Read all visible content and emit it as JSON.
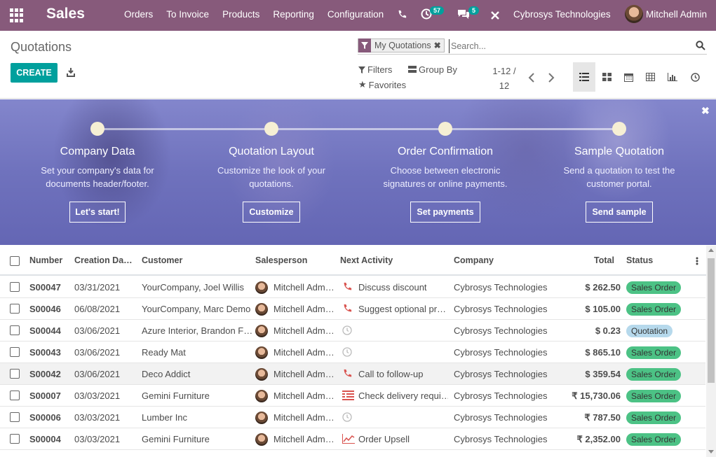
{
  "app": {
    "name": "Sales",
    "menu": [
      "Orders",
      "To Invoice",
      "Products",
      "Reporting",
      "Configuration"
    ],
    "activity_count": "57",
    "message_count": "5",
    "company": "Cybrosys Technologies",
    "user": "Mitchell Admin"
  },
  "control_panel": {
    "breadcrumb": "Quotations",
    "create_label": "CREATE",
    "facet_label": "My Quotations",
    "search_placeholder": "Search...",
    "filters_label": "Filters",
    "groupby_label": "Group By",
    "favorites_label": "Favorites",
    "pager_range": "1-12 /",
    "pager_total": "12"
  },
  "onboarding": {
    "steps": [
      {
        "title": "Company Data",
        "desc1": "Set your company's data for",
        "desc2": "documents header/footer.",
        "button": "Let's start!"
      },
      {
        "title": "Quotation Layout",
        "desc1": "Customize the look of your",
        "desc2": "quotations.",
        "button": "Customize"
      },
      {
        "title": "Order Confirmation",
        "desc1": "Choose between electronic",
        "desc2": "signatures or online payments.",
        "button": "Set payments"
      },
      {
        "title": "Sample Quotation",
        "desc1": "Send a quotation to test the",
        "desc2": "customer portal.",
        "button": "Send sample"
      }
    ]
  },
  "table": {
    "headers": {
      "number": "Number",
      "creation_date": "Creation Da…",
      "customer": "Customer",
      "salesperson": "Salesperson",
      "next_activity": "Next Activity",
      "company": "Company",
      "total": "Total",
      "status": "Status"
    },
    "rows": [
      {
        "number": "S00047",
        "date": "03/31/2021",
        "customer": "YourCompany, Joel Willis",
        "salesperson": "Mitchell Adm…",
        "activity": "Discuss discount",
        "activity_icon": "phone-icon",
        "company": "Cybrosys Technologies",
        "total": "$ 262.50",
        "status": "Sales Order"
      },
      {
        "number": "S00046",
        "date": "06/08/2021",
        "customer": "YourCompany, Marc Demo",
        "salesperson": "Mitchell Adm…",
        "activity": "Suggest optional pr…",
        "activity_icon": "phone-icon",
        "company": "Cybrosys Technologies",
        "total": "$ 105.00",
        "status": "Sales Order"
      },
      {
        "number": "S00044",
        "date": "03/06/2021",
        "customer": "Azure Interior, Brandon F…",
        "salesperson": "Mitchell Adm…",
        "activity": "",
        "activity_icon": "clock-icon",
        "company": "Cybrosys Technologies",
        "total": "$ 0.23",
        "status": "Quotation"
      },
      {
        "number": "S00043",
        "date": "03/06/2021",
        "customer": "Ready Mat",
        "salesperson": "Mitchell Adm…",
        "activity": "",
        "activity_icon": "clock-icon",
        "company": "Cybrosys Technologies",
        "total": "$ 865.10",
        "status": "Sales Order"
      },
      {
        "number": "S00042",
        "date": "03/06/2021",
        "customer": "Deco Addict",
        "salesperson": "Mitchell Adm…",
        "activity": "Call to follow-up",
        "activity_icon": "phone-icon",
        "company": "Cybrosys Technologies",
        "total": "$ 359.54",
        "status": "Sales Order"
      },
      {
        "number": "S00007",
        "date": "03/03/2021",
        "customer": "Gemini Furniture",
        "salesperson": "Mitchell Adm…",
        "activity": "Check delivery requi…",
        "activity_icon": "list-icon",
        "company": "Cybrosys Technologies",
        "total": "₹ 15,730.06",
        "status": "Sales Order"
      },
      {
        "number": "S00006",
        "date": "03/03/2021",
        "customer": "Lumber Inc",
        "salesperson": "Mitchell Adm…",
        "activity": "",
        "activity_icon": "clock-icon",
        "company": "Cybrosys Technologies",
        "total": "₹ 787.50",
        "status": "Sales Order"
      },
      {
        "number": "S00004",
        "date": "03/03/2021",
        "customer": "Gemini Furniture",
        "salesperson": "Mitchell Adm…",
        "activity": "Order Upsell",
        "activity_icon": "chart-icon",
        "company": "Cybrosys Technologies",
        "total": "₹ 2,352.00",
        "status": "Sales Order"
      }
    ]
  },
  "colors": {
    "brand": "#875a7b",
    "primary": "#00a09d",
    "sales_order": "#4cc285",
    "quotation": "#b6d9ec",
    "activity_red": "#d9534f"
  }
}
